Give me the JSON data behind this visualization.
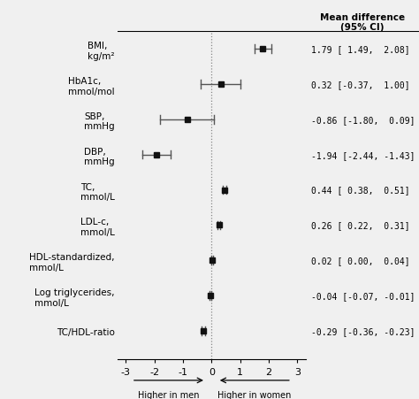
{
  "header": "Mean difference\n(95% CI)",
  "labels": [
    "BMI,\nkg/m²",
    "HbA1c,\nmmol/mol",
    "SBP,\nmmHg",
    "DBP,\nmmHg",
    "TC,\nmmol/L",
    "LDL-c,\nmmol/L",
    "HDL-standardized,\nmmol/L",
    "Log triglycerides,\nmmol/L",
    "TC/HDL-ratio"
  ],
  "means": [
    1.79,
    0.32,
    -0.86,
    -1.94,
    0.44,
    0.26,
    0.02,
    -0.04,
    -0.29
  ],
  "ci_low": [
    1.49,
    -0.37,
    -1.8,
    -2.44,
    0.38,
    0.22,
    0.0,
    -0.07,
    -0.36
  ],
  "ci_high": [
    2.08,
    1.0,
    0.09,
    -1.43,
    0.51,
    0.31,
    0.04,
    -0.01,
    -0.23
  ],
  "ci_labels": [
    "1.79 [ 1.49,  2.08]",
    "0.32 [-0.37,  1.00]",
    "-0.86 [-1.80,  0.09]",
    "-1.94 [-2.44, -1.43]",
    "0.44 [ 0.38,  0.51]",
    "0.26 [ 0.22,  0.31]",
    "0.02 [ 0.00,  0.04]",
    "-0.04 [-0.07, -0.01]",
    "-0.29 [-0.36, -0.23]"
  ],
  "xlim": [
    -3.3,
    3.3
  ],
  "xticks": [
    -3,
    -2,
    -1,
    0,
    1,
    2,
    3
  ],
  "xlabel_left": "Higher in men",
  "xlabel_right": "Higher in women",
  "bg_color": "#f0f0f0",
  "marker_color": "#111111",
  "line_color": "#555555",
  "marker_size": 5
}
